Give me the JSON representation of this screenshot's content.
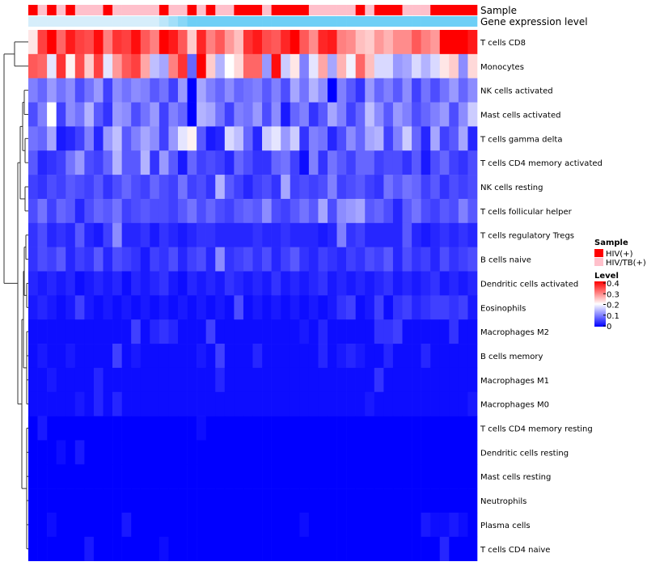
{
  "chart_data": {
    "type": "heatmap",
    "title": "",
    "annotation_tracks": [
      {
        "name": "Sample"
      },
      {
        "name": "Gene expression level"
      }
    ],
    "rows": [
      "T cells CD8",
      "Monocytes",
      "NK cells activated",
      "Mast cells activated",
      "T cells gamma delta",
      "T cells CD4 memory activated",
      "NK cells resting",
      "T cells follicular helper",
      "T cells regulatory  Tregs",
      "B cells naive",
      "Dendritic cells activated",
      "Eosinophils",
      "Macrophages M2",
      "B cells memory",
      "Macrophages M1",
      "Macrophages M0",
      "T cells CD4 memory resting",
      "Dendritic cells resting",
      "Mast cells resting",
      "Neutrophils",
      "Plasma cells",
      "T cells CD4 naive"
    ],
    "sample_groups": [
      0,
      1,
      0,
      1,
      0,
      1,
      1,
      1,
      0,
      1,
      1,
      1,
      1,
      1,
      0,
      1,
      1,
      0,
      1,
      0,
      1,
      1,
      0,
      0,
      0,
      1,
      0,
      0,
      0,
      0,
      1,
      1,
      1,
      1,
      1,
      0,
      1,
      0,
      0,
      0,
      1,
      1,
      1,
      0,
      0,
      0,
      0,
      0
    ],
    "row_levels": [
      [
        0.22,
        0.35,
        0.4,
        0.32,
        0.38,
        0.35,
        0.34,
        0.39,
        0.3,
        0.36,
        0.35,
        0.39,
        0.33,
        0.3,
        0.4,
        0.38,
        0.33,
        0.24,
        0.37,
        0.3,
        0.33,
        0.28,
        0.25,
        0.36,
        0.38,
        0.34,
        0.33,
        0.37,
        0.4,
        0.33,
        0.29,
        0.37,
        0.38,
        0.3,
        0.29,
        0.25,
        0.24,
        0.28,
        0.26,
        0.29,
        0.29,
        0.33,
        0.3,
        0.28,
        0.4,
        0.4,
        0.4,
        0.38
      ],
      [
        0.33,
        0.32,
        0.18,
        0.36,
        0.21,
        0.34,
        0.24,
        0.35,
        0.18,
        0.28,
        0.33,
        0.35,
        0.27,
        0.15,
        0.13,
        0.3,
        0.36,
        0.08,
        0.4,
        0.24,
        0.14,
        0.2,
        0.23,
        0.32,
        0.32,
        0.12,
        0.39,
        0.16,
        0.22,
        0.1,
        0.18,
        0.27,
        0.13,
        0.26,
        0.19,
        0.32,
        0.25,
        0.17,
        0.17,
        0.12,
        0.13,
        0.17,
        0.14,
        0.17,
        0.22,
        0.24,
        0.11,
        0.23
      ],
      [
        0.1,
        0.08,
        0.12,
        0.09,
        0.11,
        0.06,
        0.09,
        0.12,
        0.05,
        0.11,
        0.09,
        0.11,
        0.1,
        0.07,
        0.09,
        0.05,
        0.12,
        0.0,
        0.13,
        0.1,
        0.08,
        0.11,
        0.08,
        0.09,
        0.1,
        0.07,
        0.1,
        0.06,
        0.13,
        0.09,
        0.14,
        0.11,
        0.0,
        0.1,
        0.07,
        0.04,
        0.12,
        0.08,
        0.1,
        0.07,
        0.11,
        0.05,
        0.09,
        0.06,
        0.09,
        0.12,
        0.08,
        0.11
      ],
      [
        0.06,
        0.1,
        0.2,
        0.05,
        0.11,
        0.09,
        0.14,
        0.07,
        0.04,
        0.12,
        0.11,
        0.06,
        0.09,
        0.12,
        0.05,
        0.1,
        0.08,
        0.0,
        0.14,
        0.13,
        0.09,
        0.05,
        0.1,
        0.09,
        0.12,
        0.06,
        0.11,
        0.02,
        0.08,
        0.1,
        0.04,
        0.07,
        0.13,
        0.1,
        0.05,
        0.08,
        0.15,
        0.11,
        0.07,
        0.12,
        0.1,
        0.06,
        0.08,
        0.1,
        0.12,
        0.06,
        0.11,
        0.16
      ],
      [
        0.09,
        0.08,
        0.13,
        0.02,
        0.03,
        0.05,
        0.1,
        0.03,
        0.12,
        0.15,
        0.07,
        0.1,
        0.13,
        0.11,
        0.05,
        0.12,
        0.18,
        0.21,
        0.07,
        0.02,
        0.03,
        0.17,
        0.15,
        0.08,
        0.03,
        0.16,
        0.18,
        0.12,
        0.16,
        0.04,
        0.1,
        0.09,
        0.03,
        0.06,
        0.11,
        0.08,
        0.13,
        0.14,
        0.05,
        0.1,
        0.16,
        0.08,
        0.03,
        0.13,
        0.05,
        0.07,
        0.13,
        0.03
      ],
      [
        0.07,
        0.03,
        0.04,
        0.05,
        0.09,
        0.12,
        0.06,
        0.05,
        0.08,
        0.14,
        0.07,
        0.07,
        0.14,
        0.04,
        0.12,
        0.07,
        0.02,
        0.08,
        0.05,
        0.06,
        0.05,
        0.03,
        0.08,
        0.06,
        0.04,
        0.04,
        0.08,
        0.09,
        0.05,
        0.01,
        0.1,
        0.04,
        0.09,
        0.07,
        0.05,
        0.08,
        0.08,
        0.05,
        0.06,
        0.06,
        0.04,
        0.07,
        0.02,
        0.06,
        0.08,
        0.05,
        0.04,
        0.06
      ],
      [
        0.05,
        0.04,
        0.06,
        0.05,
        0.07,
        0.06,
        0.05,
        0.07,
        0.04,
        0.06,
        0.08,
        0.06,
        0.05,
        0.08,
        0.06,
        0.05,
        0.09,
        0.05,
        0.06,
        0.04,
        0.14,
        0.07,
        0.05,
        0.03,
        0.05,
        0.06,
        0.04,
        0.13,
        0.05,
        0.06,
        0.05,
        0.06,
        0.1,
        0.05,
        0.06,
        0.07,
        0.05,
        0.04,
        0.09,
        0.07,
        0.09,
        0.08,
        0.05,
        0.07,
        0.04,
        0.06,
        0.05,
        0.06
      ],
      [
        0.06,
        0.09,
        0.05,
        0.08,
        0.07,
        0.03,
        0.06,
        0.08,
        0.07,
        0.09,
        0.05,
        0.06,
        0.07,
        0.06,
        0.06,
        0.05,
        0.07,
        0.09,
        0.06,
        0.08,
        0.06,
        0.05,
        0.07,
        0.08,
        0.07,
        0.11,
        0.06,
        0.05,
        0.07,
        0.09,
        0.07,
        0.13,
        0.06,
        0.11,
        0.12,
        0.13,
        0.07,
        0.08,
        0.06,
        0.03,
        0.07,
        0.09,
        0.06,
        0.05,
        0.07,
        0.06,
        0.1,
        0.07
      ],
      [
        0.04,
        0.06,
        0.03,
        0.04,
        0.03,
        0.07,
        0.03,
        0.02,
        0.05,
        0.11,
        0.03,
        0.03,
        0.04,
        0.02,
        0.04,
        0.03,
        0.02,
        0.03,
        0.04,
        0.04,
        0.03,
        0.03,
        0.03,
        0.03,
        0.04,
        0.03,
        0.03,
        0.04,
        0.03,
        0.03,
        0.03,
        0.02,
        0.03,
        0.1,
        0.04,
        0.05,
        0.03,
        0.03,
        0.03,
        0.03,
        0.07,
        0.03,
        0.02,
        0.03,
        0.04,
        0.03,
        0.04,
        0.03
      ],
      [
        0.04,
        0.06,
        0.05,
        0.07,
        0.03,
        0.05,
        0.04,
        0.07,
        0.03,
        0.06,
        0.05,
        0.04,
        0.02,
        0.05,
        0.04,
        0.06,
        0.03,
        0.05,
        0.06,
        0.03,
        0.11,
        0.04,
        0.05,
        0.06,
        0.04,
        0.06,
        0.03,
        0.05,
        0.07,
        0.04,
        0.03,
        0.05,
        0.04,
        0.03,
        0.05,
        0.04,
        0.06,
        0.05,
        0.07,
        0.03,
        0.06,
        0.04,
        0.05,
        0.03,
        0.06,
        0.04,
        0.05,
        0.06
      ],
      [
        0.03,
        0.02,
        0.03,
        0.02,
        0.03,
        0.01,
        0.02,
        0.03,
        0.02,
        0.03,
        0.01,
        0.03,
        0.02,
        0.03,
        0.04,
        0.02,
        0.01,
        0.03,
        0.02,
        0.03,
        0.02,
        0.04,
        0.03,
        0.02,
        0.03,
        0.02,
        0.04,
        0.02,
        0.03,
        0.02,
        0.03,
        0.04,
        0.02,
        0.03,
        0.02,
        0.03,
        0.02,
        0.03,
        0.04,
        0.02,
        0.03,
        0.02,
        0.03,
        0.04,
        0.02,
        0.03,
        0.02,
        0.03
      ],
      [
        0.02,
        0.03,
        0.02,
        0.01,
        0.02,
        0.05,
        0.02,
        0.01,
        0.02,
        0.01,
        0.02,
        0.01,
        0.02,
        0.01,
        0.02,
        0.01,
        0.02,
        0.01,
        0.02,
        0.01,
        0.02,
        0.01,
        0.06,
        0.01,
        0.02,
        0.01,
        0.02,
        0.01,
        0.02,
        0.01,
        0.02,
        0.01,
        0.02,
        0.04,
        0.05,
        0.01,
        0.02,
        0.05,
        0.01,
        0.04,
        0.05,
        0.03,
        0.04,
        0.05,
        0.05,
        0.04,
        0.05,
        0.02
      ],
      [
        0.01,
        0.01,
        0.01,
        0.01,
        0.01,
        0.01,
        0.01,
        0.01,
        0.01,
        0.01,
        0.01,
        0.05,
        0.01,
        0.03,
        0.04,
        0.03,
        0.01,
        0.01,
        0.01,
        0.05,
        0.01,
        0.01,
        0.01,
        0.01,
        0.01,
        0.01,
        0.01,
        0.01,
        0.01,
        0.02,
        0.01,
        0.03,
        0.01,
        0.01,
        0.01,
        0.01,
        0.01,
        0.04,
        0.04,
        0.05,
        0.01,
        0.01,
        0.01,
        0.01,
        0.01,
        0.04,
        0.01,
        0.01
      ],
      [
        0.01,
        0.02,
        0.01,
        0.01,
        0.02,
        0.01,
        0.01,
        0.01,
        0.01,
        0.05,
        0.01,
        0.02,
        0.01,
        0.01,
        0.01,
        0.01,
        0.01,
        0.01,
        0.02,
        0.01,
        0.05,
        0.01,
        0.01,
        0.01,
        0.03,
        0.01,
        0.01,
        0.01,
        0.01,
        0.01,
        0.01,
        0.03,
        0.01,
        0.02,
        0.03,
        0.02,
        0.01,
        0.01,
        0.03,
        0.01,
        0.01,
        0.01,
        0.03,
        0.01,
        0.01,
        0.01,
        0.01,
        0.01
      ],
      [
        0.01,
        0.01,
        0.02,
        0.01,
        0.01,
        0.01,
        0.01,
        0.03,
        0.01,
        0.01,
        0.01,
        0.01,
        0.01,
        0.01,
        0.01,
        0.01,
        0.01,
        0.01,
        0.01,
        0.01,
        0.03,
        0.01,
        0.01,
        0.01,
        0.01,
        0.01,
        0.01,
        0.01,
        0.01,
        0.01,
        0.01,
        0.01,
        0.01,
        0.01,
        0.01,
        0.01,
        0.01,
        0.04,
        0.01,
        0.01,
        0.01,
        0.01,
        0.01,
        0.01,
        0.01,
        0.01,
        0.01,
        0.01
      ],
      [
        0.01,
        0.01,
        0.01,
        0.01,
        0.01,
        0.02,
        0.01,
        0.03,
        0.01,
        0.03,
        0.01,
        0.01,
        0.01,
        0.01,
        0.01,
        0.01,
        0.01,
        0.01,
        0.01,
        0.01,
        0.01,
        0.01,
        0.01,
        0.01,
        0.01,
        0.01,
        0.01,
        0.01,
        0.01,
        0.01,
        0.01,
        0.01,
        0.01,
        0.01,
        0.01,
        0.01,
        0.02,
        0.01,
        0.01,
        0.01,
        0.01,
        0.01,
        0.01,
        0.01,
        0.01,
        0.01,
        0.01,
        0.02
      ],
      [
        0.0,
        0.02,
        0.0,
        0.0,
        0.0,
        0.0,
        0.0,
        0.0,
        0.0,
        0.0,
        0.0,
        0.0,
        0.0,
        0.0,
        0.0,
        0.0,
        0.0,
        0.0,
        0.01,
        0.0,
        0.0,
        0.0,
        0.0,
        0.0,
        0.0,
        0.0,
        0.0,
        0.0,
        0.0,
        0.0,
        0.0,
        0.0,
        0.0,
        0.0,
        0.0,
        0.0,
        0.0,
        0.0,
        0.0,
        0.0,
        0.0,
        0.0,
        0.0,
        0.0,
        0.0,
        0.0,
        0.0,
        0.0
      ],
      [
        0.0,
        0.0,
        0.0,
        0.01,
        0.0,
        0.02,
        0.0,
        0.0,
        0.0,
        0.0,
        0.0,
        0.0,
        0.0,
        0.0,
        0.0,
        0.0,
        0.0,
        0.0,
        0.0,
        0.0,
        0.0,
        0.0,
        0.0,
        0.0,
        0.0,
        0.0,
        0.0,
        0.0,
        0.0,
        0.0,
        0.0,
        0.0,
        0.0,
        0.0,
        0.0,
        0.0,
        0.0,
        0.0,
        0.0,
        0.0,
        0.0,
        0.0,
        0.0,
        0.0,
        0.0,
        0.0,
        0.0,
        0.0
      ],
      [
        0.0,
        0.0,
        0.0,
        0.0,
        0.0,
        0.0,
        0.0,
        0.0,
        0.0,
        0.0,
        0.0,
        0.0,
        0.0,
        0.0,
        0.0,
        0.0,
        0.0,
        0.0,
        0.0,
        0.0,
        0.0,
        0.0,
        0.0,
        0.0,
        0.0,
        0.0,
        0.0,
        0.0,
        0.0,
        0.0,
        0.0,
        0.0,
        0.0,
        0.0,
        0.0,
        0.0,
        0.0,
        0.0,
        0.0,
        0.0,
        0.0,
        0.0,
        0.0,
        0.0,
        0.0,
        0.0,
        0.0,
        0.0
      ],
      [
        0.0,
        0.0,
        0.0,
        0.0,
        0.0,
        0.0,
        0.0,
        0.0,
        0.0,
        0.0,
        0.0,
        0.0,
        0.0,
        0.0,
        0.0,
        0.0,
        0.0,
        0.0,
        0.0,
        0.0,
        0.0,
        0.0,
        0.0,
        0.0,
        0.0,
        0.0,
        0.0,
        0.0,
        0.0,
        0.0,
        0.0,
        0.0,
        0.0,
        0.0,
        0.0,
        0.0,
        0.0,
        0.0,
        0.0,
        0.0,
        0.0,
        0.0,
        0.0,
        0.0,
        0.0,
        0.0,
        0.0,
        0.0
      ],
      [
        0.0,
        0.0,
        0.01,
        0.0,
        0.0,
        0.0,
        0.0,
        0.0,
        0.0,
        0.0,
        0.02,
        0.0,
        0.0,
        0.0,
        0.0,
        0.0,
        0.0,
        0.0,
        0.0,
        0.0,
        0.0,
        0.0,
        0.0,
        0.0,
        0.0,
        0.0,
        0.0,
        0.0,
        0.0,
        0.01,
        0.0,
        0.0,
        0.0,
        0.0,
        0.0,
        0.0,
        0.0,
        0.0,
        0.0,
        0.0,
        0.0,
        0.0,
        0.02,
        0.01,
        0.01,
        0.02,
        0.01,
        0.0
      ],
      [
        0.0,
        0.0,
        0.0,
        0.0,
        0.0,
        0.0,
        0.02,
        0.0,
        0.0,
        0.0,
        0.0,
        0.0,
        0.0,
        0.0,
        0.01,
        0.0,
        0.0,
        0.0,
        0.0,
        0.0,
        0.0,
        0.0,
        0.0,
        0.0,
        0.0,
        0.0,
        0.0,
        0.0,
        0.0,
        0.0,
        0.0,
        0.0,
        0.0,
        0.0,
        0.0,
        0.0,
        0.0,
        0.0,
        0.0,
        0.0,
        0.0,
        0.0,
        0.0,
        0.0,
        0.03,
        0.0,
        0.0,
        0.0
      ]
    ],
    "legend": [
      {
        "title": "Sample",
        "entries": [
          "HIV(+)",
          "HIV/TB(+)"
        ]
      },
      {
        "title": "Level",
        "ticks": [
          "0.4",
          "0.3",
          "0.2",
          "0.1",
          "0"
        ],
        "range": [
          0,
          0.4
        ]
      }
    ],
    "colors": {
      "low": "#0000FF",
      "mid": "#FFFFFF",
      "high": "#FF0000",
      "hiv_pos": "#FF0000",
      "hiv_tb_pos": "#FFC0CB",
      "expr_light": "#D6EEFB",
      "expr_dark": "#6ECFF6",
      "dendrogram": "#333333"
    }
  }
}
